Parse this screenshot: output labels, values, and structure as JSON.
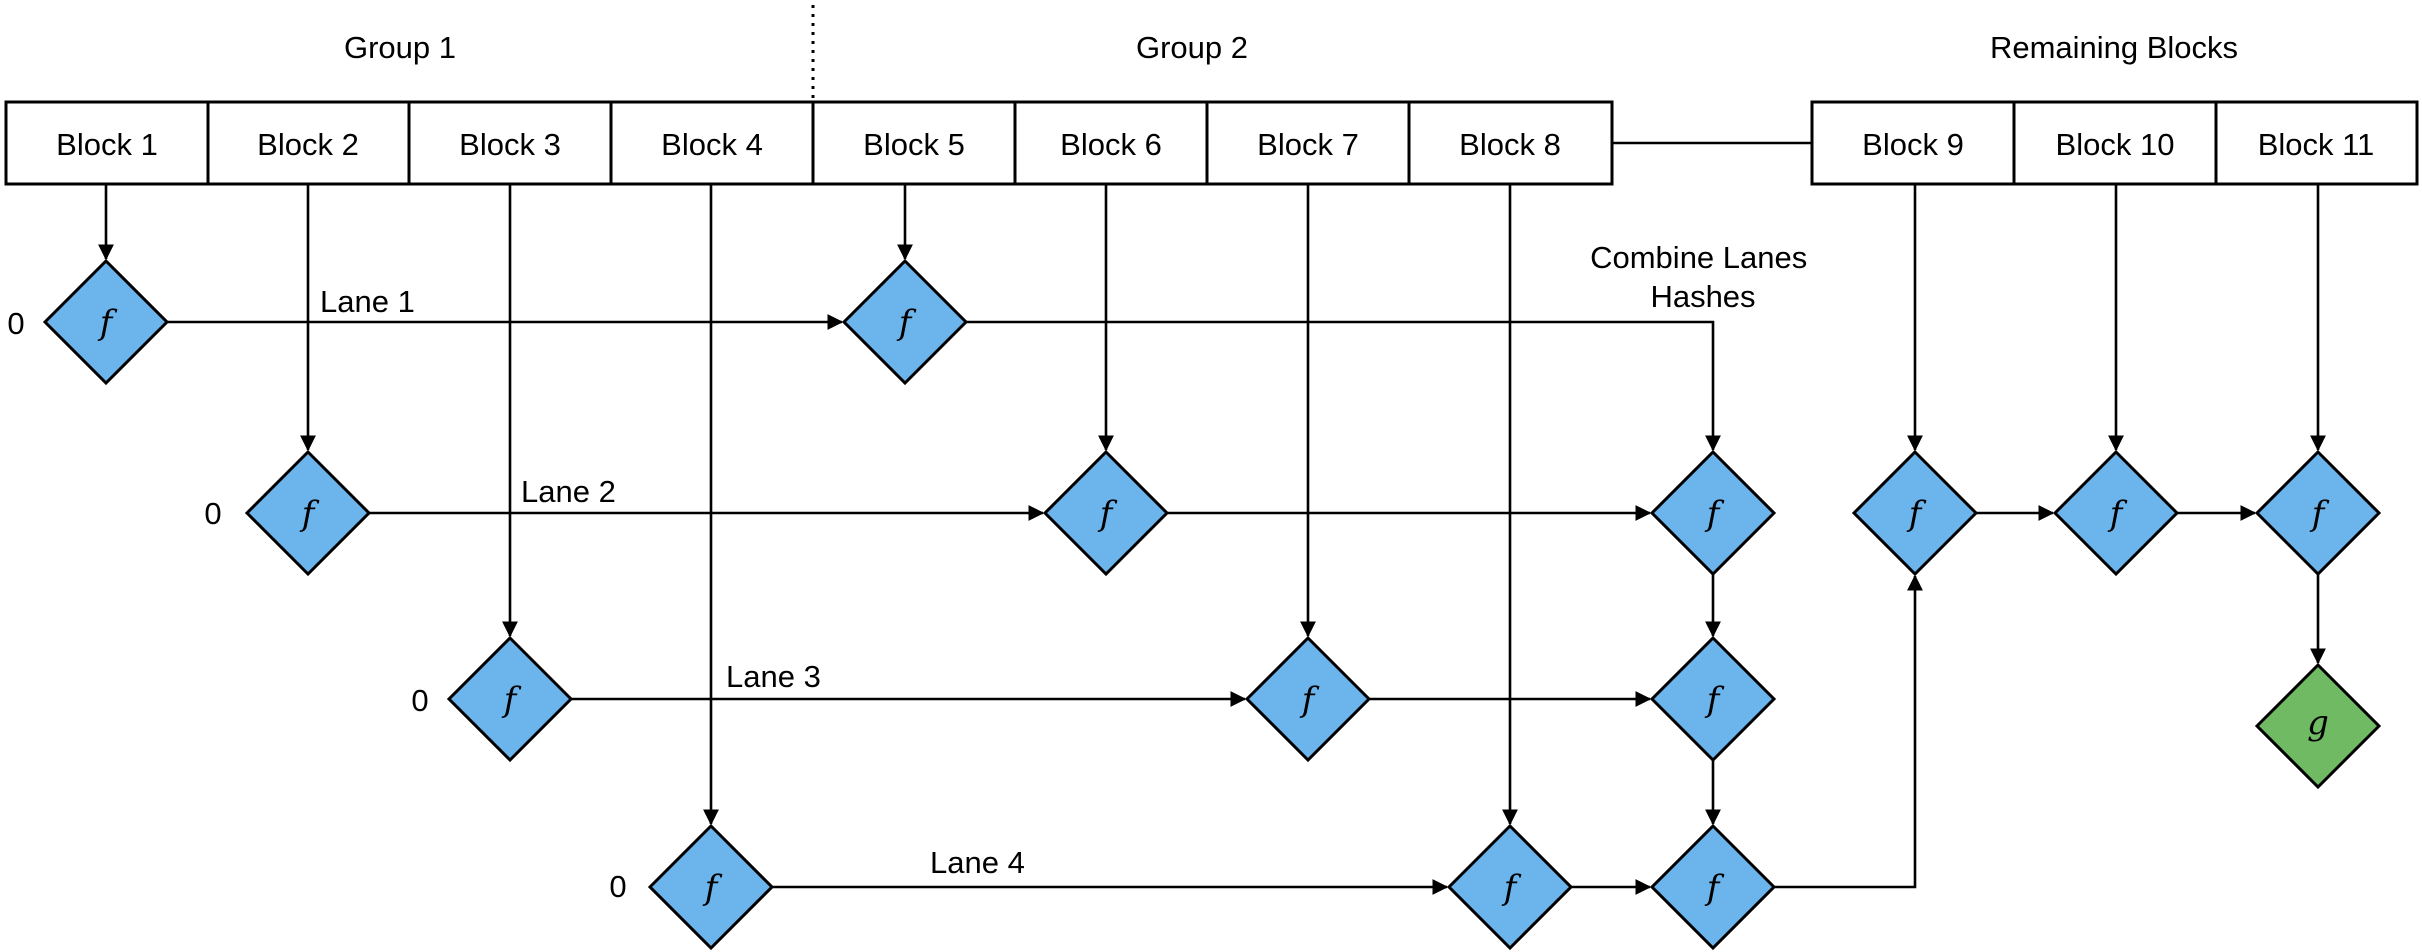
{
  "groups": {
    "group1": "Group 1",
    "group2": "Group 2",
    "remaining": "Remaining Blocks"
  },
  "blocks": [
    "Block 1",
    "Block 2",
    "Block 3",
    "Block 4",
    "Block 5",
    "Block 6",
    "Block 7",
    "Block 8",
    "Block 9",
    "Block 10",
    "Block 11"
  ],
  "lanes": [
    "Lane 1",
    "Lane 2",
    "Lane 3",
    "Lane 4"
  ],
  "zero_label": "0",
  "combine_label": [
    "Combine Lanes",
    "Hashes"
  ],
  "function_f": "f",
  "function_g": "g",
  "colors": {
    "f_node": "#6cb4ec",
    "g_node": "#6fba62"
  }
}
